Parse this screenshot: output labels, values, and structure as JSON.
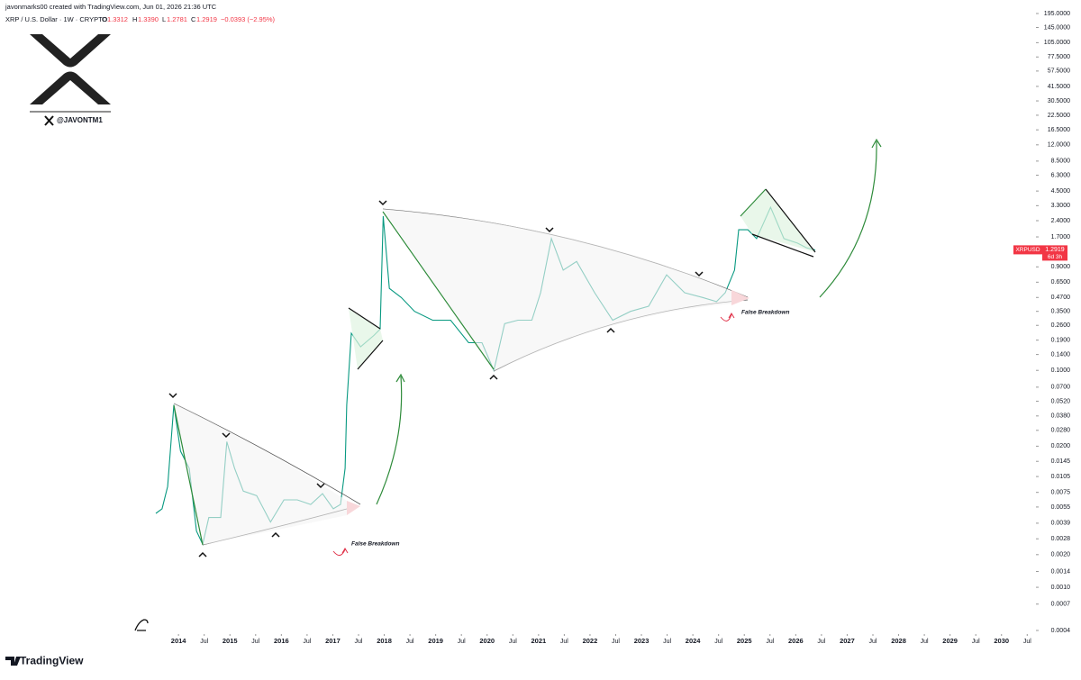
{
  "header": {
    "credit": "javonmarks00 created with TradingView.com, Jun 01, 2026 21:36 UTC",
    "symbol": "XRP / U.S. Dollar · 1W · CRYPTO",
    "open_tag": "O",
    "open": "1.3312",
    "high_tag": "H",
    "high": "1.3390",
    "low_tag": "L",
    "low": "1.2781",
    "close_tag": "C",
    "close": "1.2919",
    "change": "−0.0393 (−2.95%)",
    "handle": "@JAVONTM1",
    "brand": "TradingView"
  },
  "chart_data": {
    "type": "line",
    "log_y": true,
    "color": "#089981",
    "x": [
      2013.56,
      2013.68,
      2013.79,
      2013.91,
      2014.04,
      2014.21,
      2014.35,
      2014.47,
      2014.59,
      2014.82,
      2014.94,
      2015.09,
      2015.26,
      2015.52,
      2015.79,
      2016.05,
      2016.31,
      2016.57,
      2016.8,
      2017.01,
      2017.15,
      2017.24,
      2017.27,
      2017.36,
      2017.54,
      2017.8,
      2017.92,
      2017.98,
      2018.1,
      2018.33,
      2018.59,
      2018.94,
      2019.29,
      2019.64,
      2019.9,
      2020.13,
      2020.34,
      2020.6,
      2020.87,
      2021.04,
      2021.25,
      2021.48,
      2021.74,
      2022.09,
      2022.44,
      2022.79,
      2023.14,
      2023.49,
      2023.84,
      2024.19,
      2024.46,
      2024.63,
      2024.81,
      2024.89,
      2025.07,
      2025.24,
      2025.51,
      2025.77,
      2026.03,
      2026.21,
      2026.38
    ],
    "series": [
      {
        "name": "XRPUSD",
        "values": [
          0.0048,
          0.0053,
          0.0085,
          0.048,
          0.018,
          0.0125,
          0.0033,
          0.0025,
          0.0044,
          0.0044,
          0.022,
          0.0125,
          0.0077,
          0.007,
          0.004,
          0.0064,
          0.0064,
          0.0058,
          0.0073,
          0.0053,
          0.0058,
          0.0125,
          0.048,
          0.22,
          0.165,
          0.21,
          0.24,
          2.64,
          0.57,
          0.47,
          0.35,
          0.29,
          0.29,
          0.18,
          0.18,
          0.1,
          0.27,
          0.29,
          0.29,
          0.52,
          1.64,
          0.84,
          1.01,
          0.52,
          0.29,
          0.35,
          0.39,
          0.76,
          0.52,
          0.47,
          0.43,
          0.52,
          0.84,
          1.98,
          1.98,
          1.64,
          3.19,
          1.64,
          1.49,
          1.35,
          1.29
        ]
      }
    ],
    "last_label": {
      "name": "XRPUSD",
      "price": "1.2919",
      "countdown": "6d 3h",
      "value": 1.2919
    },
    "xlim": [
      2010.53,
      2030.67
    ],
    "xticks": [
      2014,
      {
        "value": 2014.5,
        "label": "Jul"
      },
      2015,
      {
        "value": 2015.5,
        "label": "Jul"
      },
      2016,
      {
        "value": 2016.5,
        "label": "Jul"
      },
      2017,
      {
        "value": 2017.5,
        "label": "Jul"
      },
      2018,
      {
        "value": 2018.5,
        "label": "Jul"
      },
      2019,
      {
        "value": 2019.5,
        "label": "Jul"
      },
      2020,
      {
        "value": 2020.5,
        "label": "Jul"
      },
      2021,
      {
        "value": 2021.5,
        "label": "Jul"
      },
      2022,
      {
        "value": 2022.5,
        "label": "Jul"
      },
      2023,
      {
        "value": 2023.5,
        "label": "Jul"
      },
      2024,
      {
        "value": 2024.5,
        "label": "Jul"
      },
      2025,
      {
        "value": 2025.5,
        "label": "Jul"
      },
      2026,
      {
        "value": 2026.5,
        "label": "Jul"
      },
      2027,
      {
        "value": 2027.5,
        "label": "Jul"
      },
      2028,
      {
        "value": 2028.5,
        "label": "Jul"
      },
      2029,
      {
        "value": 2029.5,
        "label": "Jul"
      },
      2030,
      {
        "value": 2030.5,
        "label": "Jul"
      }
    ],
    "ylim": [
      0.0004,
      195
    ],
    "yticks": [
      {
        "value": 195,
        "label": "195.0000"
      },
      {
        "value": 145,
        "label": "145.0000"
      },
      {
        "value": 105,
        "label": "105.0000"
      },
      {
        "value": 77.5,
        "label": "77.5000"
      },
      {
        "value": 57.5,
        "label": "57.5000"
      },
      {
        "value": 41.5,
        "label": "41.5000"
      },
      {
        "value": 30.5,
        "label": "30.5000"
      },
      {
        "value": 22.5,
        "label": "22.5000"
      },
      {
        "value": 16.5,
        "label": "16.5000"
      },
      {
        "value": 12,
        "label": "12.0000"
      },
      {
        "value": 8.5,
        "label": "8.5000"
      },
      {
        "value": 6.3,
        "label": "6.3000"
      },
      {
        "value": 4.5,
        "label": "4.5000"
      },
      {
        "value": 3.3,
        "label": "3.3000"
      },
      {
        "value": 2.4,
        "label": "2.4000"
      },
      {
        "value": 1.7,
        "label": "1.7000"
      },
      {
        "value": 0.9,
        "label": "0.9000"
      },
      {
        "value": 0.65,
        "label": "0.6500"
      },
      {
        "value": 0.47,
        "label": "0.4700"
      },
      {
        "value": 0.35,
        "label": "0.3500"
      },
      {
        "value": 0.26,
        "label": "0.2600"
      },
      {
        "value": 0.19,
        "label": "0.1900"
      },
      {
        "value": 0.14,
        "label": "0.1400"
      },
      {
        "value": 0.1,
        "label": "0.1000"
      },
      {
        "value": 0.07,
        "label": "0.0700"
      },
      {
        "value": 0.052,
        "label": "0.0520"
      },
      {
        "value": 0.038,
        "label": "0.0380"
      },
      {
        "value": 0.028,
        "label": "0.0280"
      },
      {
        "value": 0.02,
        "label": "0.0200"
      },
      {
        "value": 0.0145,
        "label": "0.0145"
      },
      {
        "value": 0.0105,
        "label": "0.0105"
      },
      {
        "value": 0.0075,
        "label": "0.0075"
      },
      {
        "value": 0.0055,
        "label": "0.0055"
      },
      {
        "value": 0.0039,
        "label": "0.0039"
      },
      {
        "value": 0.0028,
        "label": "0.0028"
      },
      {
        "value": 0.002,
        "label": "0.0020"
      },
      {
        "value": 0.0014,
        "label": "0.0014"
      },
      {
        "value": 0.001,
        "label": "0.0010"
      },
      {
        "value": 0.0007,
        "label": "0.0007"
      },
      {
        "value": 0.0004,
        "label": "0.0004"
      }
    ],
    "annotations": [
      "False Breakdown",
      "False Breakdown"
    ]
  }
}
